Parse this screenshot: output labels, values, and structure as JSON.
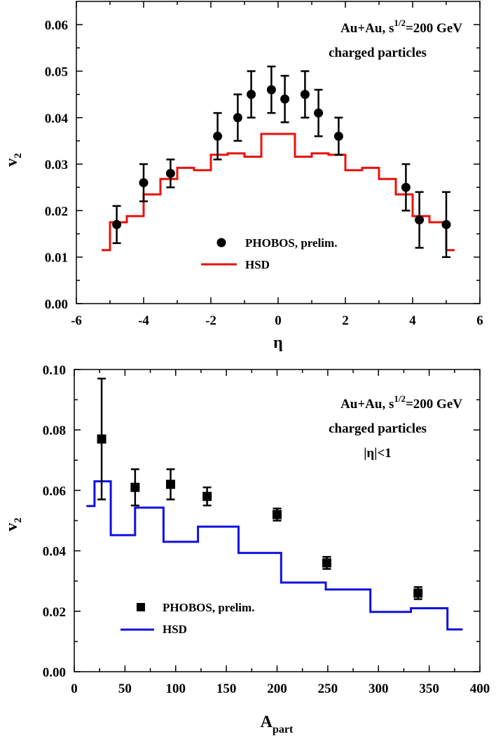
{
  "chart_data": [
    {
      "type": "scatter",
      "xlabel": "η",
      "ylabel": "v",
      "ylabel_sub": "2",
      "xlim": [
        -6,
        6
      ],
      "ylim": [
        0.0,
        0.065
      ],
      "xticks": [
        -6,
        -4,
        -2,
        0,
        2,
        4,
        6
      ],
      "yticks": [
        0.0,
        0.01,
        0.02,
        0.03,
        0.04,
        0.05,
        0.06
      ],
      "x_tick_labels": [
        "-6",
        "-4",
        "-2",
        "0",
        "2",
        "4",
        "6"
      ],
      "y_tick_labels": [
        "0.00",
        "0.01",
        "0.02",
        "0.03",
        "0.04",
        "0.05",
        "0.06"
      ],
      "annotation": {
        "line1_prefix": "Au+Au,  s",
        "line1_sup": "1/2",
        "line1_suffix": "=200 GeV",
        "line2": "charged particles",
        "line3": ""
      },
      "legend": {
        "position": "bottom-center",
        "marker_label": "PHOBOS,  prelim.",
        "line_label": "HSD"
      },
      "series": [
        {
          "name": "PHOBOS, prelim.",
          "kind": "points",
          "marker": "circle",
          "color": "#000000",
          "x": [
            -4.8,
            -4.0,
            -3.2,
            -1.8,
            -1.2,
            -0.8,
            -0.2,
            0.2,
            0.8,
            1.2,
            1.8,
            3.8,
            4.2,
            5.0
          ],
          "y": [
            0.017,
            0.026,
            0.028,
            0.036,
            0.04,
            0.045,
            0.046,
            0.044,
            0.045,
            0.041,
            0.036,
            0.025,
            0.018,
            0.017
          ],
          "err": [
            0.004,
            0.004,
            0.003,
            0.005,
            0.005,
            0.005,
            0.005,
            0.005,
            0.005,
            0.005,
            0.004,
            0.005,
            0.006,
            0.007
          ]
        },
        {
          "name": "HSD",
          "kind": "step",
          "color": "#e8120c",
          "edges": [
            -5.25,
            -5.0,
            -4.5,
            -4.0,
            -3.5,
            -3.0,
            -2.5,
            -2.0,
            -1.5,
            -1.0,
            -0.5,
            0.5,
            1.0,
            1.5,
            2.0,
            2.5,
            3.0,
            3.5,
            4.0,
            4.5,
            5.0,
            5.25
          ],
          "values": [
            0.0115,
            0.0175,
            0.0188,
            0.0235,
            0.0268,
            0.0292,
            0.0287,
            0.032,
            0.0323,
            0.0316,
            0.0365,
            0.0316,
            0.0323,
            0.032,
            0.0287,
            0.0292,
            0.0268,
            0.0235,
            0.0188,
            0.0175,
            0.0115
          ]
        }
      ]
    },
    {
      "type": "scatter",
      "xlabel": "A",
      "xlabel_sub": "part",
      "ylabel": "v",
      "ylabel_sub": "2",
      "xlim": [
        0,
        400
      ],
      "ylim": [
        0.0,
        0.1
      ],
      "xticks": [
        0,
        50,
        100,
        150,
        200,
        250,
        300,
        350,
        400
      ],
      "yticks": [
        0.0,
        0.02,
        0.04,
        0.06,
        0.08,
        0.1
      ],
      "x_tick_labels": [
        "0",
        "50",
        "100",
        "150",
        "200",
        "250",
        "300",
        "350",
        "400"
      ],
      "y_tick_labels": [
        "0.00",
        "0.02",
        "0.04",
        "0.06",
        "0.08",
        "0.10"
      ],
      "annotation": {
        "line1_prefix": "Au+Au,  s",
        "line1_sup": "1/2",
        "line1_suffix": "=200 GeV",
        "line2": "charged particles",
        "line3": "|η|<1"
      },
      "legend": {
        "position": "bottom-left",
        "marker_label": "PHOBOS,  prelim.",
        "line_label": "HSD"
      },
      "series": [
        {
          "name": "PHOBOS, prelim.",
          "kind": "points",
          "marker": "square",
          "color": "#000000",
          "x": [
            27,
            60,
            95,
            131,
            200,
            249,
            339
          ],
          "y": [
            0.077,
            0.061,
            0.062,
            0.058,
            0.052,
            0.036,
            0.026
          ],
          "err": [
            0.02,
            0.006,
            0.005,
            0.003,
            0.002,
            0.002,
            0.002
          ]
        },
        {
          "name": "HSD",
          "kind": "step",
          "color": "#1010e0",
          "edges": [
            12,
            20,
            36,
            60,
            88,
            122,
            162,
            204,
            248,
            292,
            332,
            368,
            383
          ],
          "values": [
            0.0548,
            0.063,
            0.0452,
            0.0543,
            0.043,
            0.048,
            0.0393,
            0.0295,
            0.0272,
            0.0198,
            0.021,
            0.014
          ]
        }
      ]
    }
  ]
}
